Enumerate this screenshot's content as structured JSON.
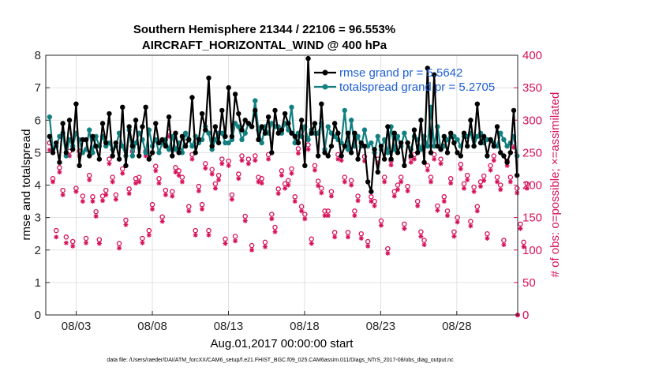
{
  "chart_data": {
    "type": "line",
    "title_line1": "Southern Hemisphere 21344 / 22106 = 96.553%",
    "title_line2": "AIRCRAFT_HORIZONTAL_WIND @ 400 hPa",
    "xlabel": "Aug.01,2017 00:00:00 start",
    "ylabel_left": "rmse and totalspread",
    "ylabel_right": "# of obs: o=possible; ×=assimilated",
    "footer": "data file: /Users/raeder/DAI/ATM_forcXX/CAM6_setup/f.e21.FHIST_BGC.f09_025.CAM6assim.011/Diags_NTrS_2017-08/obs_diag_output.nc",
    "xlim": [
      1.0,
      32.0
    ],
    "ylim_left": [
      0,
      8
    ],
    "ylim_right": [
      0,
      400
    ],
    "x_ticks": [
      3,
      8,
      13,
      18,
      23,
      28
    ],
    "x_tick_labels": [
      "08/03",
      "08/08",
      "08/13",
      "08/18",
      "08/23",
      "08/28"
    ],
    "y_left_ticks": [
      "0",
      "1",
      "2",
      "3",
      "4",
      "5",
      "6",
      "7",
      "8"
    ],
    "y_right_ticks": [
      "0",
      "50",
      "100",
      "150",
      "200",
      "250",
      "300",
      "350",
      "400"
    ],
    "colors": {
      "rmse": "#000000",
      "spread": "#128080",
      "obs": "#d6105a",
      "legend_text": "#1f5fd6"
    },
    "legend": [
      "rmse grand pr = 5.5642",
      "totalspread grand pr = 5.2705"
    ],
    "series": [
      {
        "name": "rmse",
        "values": [
          5.5,
          5.0,
          5.3,
          4.7,
          5.9,
          5.0,
          6.0,
          5.1,
          6.5,
          4.6,
          5.4,
          5.4,
          4.9,
          5.5,
          5.2,
          4.8,
          5.9,
          5.3,
          6.2,
          4.9,
          5.3,
          4.8,
          6.4,
          4.6,
          5.8,
          5.2,
          6.0,
          4.9,
          5.8,
          6.4,
          4.8,
          5.0,
          5.9,
          5.3,
          5.4,
          5.2,
          6.1,
          4.9,
          5.6,
          5.0,
          5.5,
          5.2,
          5.4,
          6.7,
          5.0,
          5.4,
          6.2,
          5.7,
          7.3,
          5.2,
          5.8,
          5.3,
          6.3,
          5.5,
          7.0,
          5.5,
          6.8,
          6.2,
          5.7,
          6.0,
          5.9,
          5.8,
          6.3,
          5.4,
          5.8,
          5.6,
          6.1,
          5.0,
          6.3,
          5.6,
          5.7,
          6.2,
          5.9,
          5.6,
          5.5,
          5.3,
          6.0,
          4.6,
          7.9,
          5.6,
          5.9,
          4.9,
          6.5,
          5.0,
          4.9,
          5.2,
          5.9,
          5.6,
          4.9,
          5.2,
          5.6,
          5.0,
          5.6,
          4.8,
          5.3,
          5.2,
          4.1,
          3.8,
          5.1,
          4.4,
          5.2,
          4.8,
          5.8,
          4.8,
          5.6,
          5.0,
          5.3,
          4.6,
          5.3,
          4.9,
          5.7,
          5.0,
          6.0,
          4.7,
          7.6,
          5.0,
          7.4,
          5.2,
          5.1,
          5.5,
          5.0,
          5.6,
          5.3,
          5.0,
          4.9,
          5.6,
          5.2,
          6.0,
          5.2,
          6.5,
          5.3,
          5.5,
          4.9,
          5.4,
          5.2,
          5.8,
          5.0,
          4.9,
          4.7,
          5.0,
          6.3,
          4.3
        ]
      },
      {
        "name": "totalspread",
        "values": [
          6.1,
          5.1,
          5.2,
          5.5,
          5.6,
          4.9,
          5.4,
          5.2,
          5.6,
          5.4,
          5.0,
          5.1,
          5.7,
          5.0,
          5.5,
          5.2,
          5.5,
          5.2,
          5.3,
          5.1,
          5.2,
          5.6,
          5.2,
          4.9,
          5.7,
          4.9,
          5.3,
          5.6,
          5.4,
          5.0,
          5.7,
          5.2,
          5.4,
          5.0,
          5.3,
          5.4,
          5.1,
          5.5,
          5.1,
          5.3,
          5.0,
          5.6,
          5.4,
          5.2,
          5.5,
          5.3,
          5.4,
          5.8,
          5.6,
          5.1,
          5.4,
          5.6,
          5.6,
          5.3,
          5.3,
          5.4,
          5.9,
          5.8,
          5.4,
          5.6,
          5.9,
          5.8,
          6.6,
          5.7,
          5.3,
          5.8,
          5.6,
          5.9,
          5.8,
          5.8,
          5.6,
          5.9,
          5.7,
          6.4,
          5.3,
          5.6,
          5.5,
          5.8,
          5.4,
          5.7,
          5.6,
          5.6,
          5.9,
          5.1,
          5.8,
          5.6,
          5.5,
          5.4,
          5.3,
          6.3,
          5.1,
          6.0,
          5.2,
          5.5,
          5.2,
          5.7,
          5.2,
          5.3,
          5.0,
          5.5,
          5.1,
          5.4,
          5.0,
          5.8,
          5.1,
          5.5,
          5.2,
          5.6,
          5.3,
          5.1,
          5.5,
          5.4,
          5.1,
          5.5,
          5.2,
          6.4,
          5.2,
          5.8,
          5.1,
          5.2,
          5.4,
          5.5,
          5.5,
          5.4,
          5.2,
          5.5,
          5.5,
          5.6,
          5.2,
          5.5,
          5.6,
          5.3,
          5.4,
          5.4,
          5.3,
          5.2,
          5.6,
          5.4,
          5.2,
          5.3,
          5.5,
          4.9
        ]
      },
      {
        "name": "obs_possible",
        "values": [
          265,
          210,
          130,
          227,
          192,
          120,
          252,
          113,
          195,
          252,
          183,
          118,
          215,
          182,
          159,
          116,
          183,
          192,
          240,
          212,
          185,
          110,
          225,
          146,
          194,
          252,
          210,
          212,
          118,
          252,
          130,
          170,
          229,
          210,
          151,
          192,
          282,
          190,
          227,
          222,
          212,
          267,
          167,
          247,
          130,
          198,
          170,
          233,
          130,
          224,
          202,
          215,
          240,
          117,
          237,
          185,
          121,
          217,
          245,
          152,
          240,
          107,
          245,
          212,
          210,
          112,
          247,
          155,
          135,
          194,
          222,
          202,
          207,
          225,
          182,
          256,
          167,
          155,
          262,
          117,
          230,
          206,
          195,
          160,
          160,
          190,
          127,
          247,
          245,
          212,
          127,
          207,
          160,
          183,
          125,
          244,
          113,
          182,
          175,
          240,
          145,
          212,
          102,
          238,
          190,
          200,
          212,
          140,
          198,
          242,
          247,
          175,
          128,
          115,
          230,
          212,
          247,
          168,
          240,
          182,
          160,
          210,
          128,
          150,
          232,
          202,
          215,
          144,
          197,
          167,
          205,
          214,
          125,
          230,
          245,
          212,
          200,
          115,
          237,
          212,
          265,
          195,
          140,
          112,
          202
        ]
      },
      {
        "name": "obs_assimilated",
        "values": [
          254,
          205,
          120,
          220,
          185,
          111,
          245,
          106,
          190,
          245,
          175,
          111,
          208,
          175,
          152,
          110,
          176,
          185,
          233,
          205,
          178,
          103,
          218,
          139,
          187,
          245,
          203,
          205,
          111,
          245,
          123,
          163,
          222,
          203,
          144,
          185,
          275,
          183,
          220,
          215,
          205,
          260,
          160,
          240,
          123,
          191,
          163,
          226,
          123,
          217,
          195,
          208,
          233,
          110,
          230,
          178,
          114,
          210,
          238,
          145,
          233,
          100,
          238,
          205,
          203,
          105,
          240,
          148,
          128,
          187,
          215,
          195,
          200,
          218,
          175,
          249,
          160,
          148,
          255,
          110,
          223,
          199,
          188,
          153,
          153,
          183,
          120,
          240,
          238,
          205,
          120,
          200,
          153,
          176,
          118,
          237,
          106,
          175,
          168,
          233,
          138,
          205,
          95,
          231,
          183,
          193,
          205,
          133,
          191,
          235,
          240,
          168,
          121,
          108,
          223,
          205,
          240,
          161,
          233,
          175,
          153,
          203,
          121,
          143,
          225,
          195,
          208,
          137,
          190,
          160,
          198,
          207,
          118,
          223,
          238,
          205,
          193,
          108,
          230,
          205,
          258,
          188,
          133,
          105,
          195
        ]
      }
    ]
  }
}
